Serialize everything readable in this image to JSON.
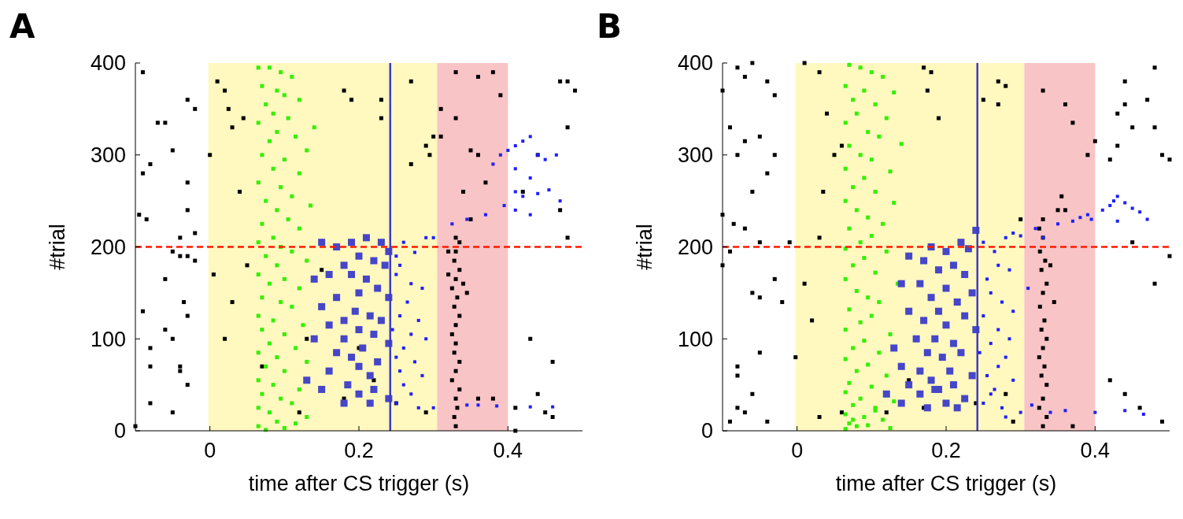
{
  "chart_data": [
    {
      "type": "scatter",
      "title": "A",
      "xlabel": "time after CS trigger (s)",
      "ylabel": "#trial",
      "xlim": [
        -0.1,
        0.5
      ],
      "ylim": [
        0,
        400
      ],
      "xticks": [
        0,
        0.2,
        0.4
      ],
      "yticks": [
        0,
        100,
        200,
        300,
        400
      ],
      "marker": "square",
      "bands": [
        {
          "axis": "x",
          "from": -0.002,
          "to": 0.305,
          "color": "#fff8bf"
        },
        {
          "axis": "x",
          "from": 0.305,
          "to": 0.4,
          "color": "#f8c4c6"
        }
      ],
      "ref_lines": [
        {
          "axis": "y",
          "value": 200,
          "color": "#ff1a00",
          "line_style": "dashed"
        },
        {
          "axis": "x",
          "value": 0.242,
          "color": "#3c3cc8",
          "line_style": "solid"
        }
      ],
      "series": [
        {
          "color": "#000000",
          "x": [
            -0.09,
            -0.095,
            -0.085,
            -0.08,
            -0.09,
            -0.07,
            -0.06,
            -0.05,
            -0.03,
            -0.02,
            -0.03,
            -0.03,
            -0.04,
            -0.02,
            -0.05,
            -0.04,
            -0.03,
            -0.02,
            -0.06,
            -0.035,
            -0.03,
            -0.09,
            -0.06,
            -0.05,
            -0.08,
            -0.04,
            -0.04,
            -0.1,
            -0.08,
            -0.05,
            -0.03,
            -0.08,
            0,
            0.005,
            0.01,
            0.02,
            0.025,
            0.03,
            0.04,
            0.045,
            0.05,
            0.03,
            0.02,
            0.07,
            0.13,
            0.15,
            0.18,
            0.19,
            0.23,
            0.23,
            0.27,
            0.27,
            0.29,
            0.295,
            0.3,
            0.31,
            0.33,
            0.36,
            0.38,
            0.39,
            0.37,
            0.35,
            0.36,
            0.33,
            0.31,
            0.32,
            0.34,
            0.33,
            0.35,
            0.36,
            0.38,
            0.44,
            0.47,
            0.48,
            0.49,
            0.48,
            0.44,
            0.41,
            0.45,
            0.46,
            0.46,
            0.43,
            0.48,
            0.47,
            0.41,
            0.42,
            0.29,
            0.25,
            0.22,
            0.2,
            0.18,
            0.12,
            0.33,
            0.328,
            0.332,
            0.33,
            0.335,
            0.325,
            0.33,
            0.335,
            0.328,
            0.33,
            0.325,
            0.33,
            0.335,
            0.328,
            0.332,
            0.325,
            0.33,
            0.335,
            0.328,
            0.33,
            0.34,
            0.345,
            0.32,
            0.335
          ],
          "values": [
            390,
            235,
            230,
            290,
            280,
            335,
            335,
            305,
            360,
            350,
            270,
            240,
            210,
            215,
            195,
            190,
            190,
            185,
            165,
            140,
            125,
            130,
            110,
            100,
            90,
            70,
            65,
            5,
            30,
            20,
            50,
            70,
            300,
            170,
            380,
            370,
            350,
            330,
            260,
            340,
            180,
            140,
            100,
            70,
            100,
            175,
            370,
            360,
            360,
            340,
            380,
            290,
            310,
            300,
            320,
            320,
            390,
            385,
            390,
            365,
            270,
            305,
            300,
            340,
            350,
            195,
            260,
            210,
            230,
            35,
            35,
            300,
            380,
            380,
            370,
            330,
            40,
            25,
            20,
            15,
            75,
            100,
            210,
            240,
            0,
            260,
            20,
            30,
            55,
            90,
            35,
            20,
            5,
            15,
            25,
            35,
            45,
            55,
            65,
            75,
            85,
            95,
            105,
            115,
            125,
            135,
            145,
            155,
            165,
            175,
            185,
            195,
            160,
            150,
            170,
            205
          ]
        },
        {
          "color": "#33f000",
          "x": [
            0.065,
            0.08,
            0.095,
            0.11,
            0.07,
            0.09,
            0.1,
            0.075,
            0.12,
            0.085,
            0.105,
            0.065,
            0.14,
            0.09,
            0.08,
            0.115,
            0.13,
            0.07,
            0.1,
            0.085,
            0.12,
            0.065,
            0.095,
            0.11,
            0.075,
            0.135,
            0.09,
            0.105,
            0.07,
            0.12,
            0.085,
            0.065,
            0.095,
            0.11,
            0.075,
            0.13,
            0.09,
            0.065,
            0.1,
            0.08,
            0.12,
            0.07,
            0.095,
            0.11,
            0.065,
            0.085,
            0.125,
            0.07,
            0.1,
            0.08,
            0.115,
            0.065,
            0.09,
            0.13,
            0.075,
            0.1,
            0.065,
            0.085,
            0.12,
            0.07,
            0.095,
            0.11,
            0.065,
            0.08,
            0.13,
            0.09,
            0.065,
            0.1,
            0.075,
            0.115
          ],
          "values": [
            395,
            395,
            390,
            385,
            375,
            370,
            365,
            355,
            360,
            345,
            340,
            335,
            330,
            325,
            315,
            320,
            305,
            300,
            295,
            285,
            280,
            270,
            265,
            255,
            250,
            245,
            240,
            230,
            225,
            220,
            210,
            205,
            200,
            195,
            190,
            185,
            180,
            170,
            165,
            160,
            155,
            145,
            140,
            135,
            125,
            120,
            115,
            110,
            105,
            95,
            90,
            85,
            80,
            75,
            70,
            65,
            55,
            50,
            45,
            40,
            35,
            30,
            25,
            20,
            15,
            10,
            5,
            3,
            1,
            8
          ]
        },
        {
          "color": "#4646c8",
          "x": [
            0.15,
            0.17,
            0.19,
            0.21,
            0.23,
            0.24,
            0.2,
            0.22,
            0.18,
            0.235,
            0.16,
            0.19,
            0.21,
            0.14,
            0.2,
            0.225,
            0.17,
            0.24,
            0.15,
            0.195,
            0.215,
            0.18,
            0.23,
            0.16,
            0.2,
            0.22,
            0.14,
            0.18,
            0.24,
            0.205,
            0.17,
            0.19,
            0.225,
            0.2,
            0.16,
            0.215,
            0.185,
            0.22,
            0.15,
            0.2,
            0.24,
            0.18,
            0.215,
            0.13
          ],
          "values": [
            205,
            200,
            205,
            210,
            205,
            195,
            190,
            185,
            180,
            180,
            170,
            170,
            165,
            165,
            150,
            155,
            145,
            145,
            135,
            130,
            125,
            120,
            120,
            115,
            110,
            105,
            100,
            100,
            95,
            90,
            85,
            80,
            75,
            70,
            65,
            60,
            50,
            45,
            45,
            40,
            35,
            30,
            30,
            55
          ]
        },
        {
          "color": "#1e1eff",
          "x": [
            0.26,
            0.275,
            0.29,
            0.3,
            0.25,
            0.255,
            0.25,
            0.27,
            0.285,
            0.265,
            0.255,
            0.28,
            0.245,
            0.27,
            0.29,
            0.26,
            0.25,
            0.275,
            0.255,
            0.285,
            0.26,
            0.27,
            0.25,
            0.28,
            0.3,
            0.345,
            0.36,
            0.385,
            0.43,
            0.46,
            0.325,
            0.345,
            0.37,
            0.395,
            0.41,
            0.42,
            0.44,
            0.455,
            0.47,
            0.43,
            0.41,
            0.38,
            0.4,
            0.41,
            0.42,
            0.43,
            0.44,
            0.45,
            0.465,
            0.41,
            0.43,
            0.39
          ],
          "values": [
            205,
            194,
            210,
            210,
            190,
            180,
            170,
            160,
            155,
            140,
            125,
            120,
            110,
            105,
            100,
            90,
            80,
            75,
            65,
            60,
            50,
            40,
            30,
            25,
            25,
            28,
            28,
            27,
            26,
            26,
            225,
            230,
            235,
            245,
            240,
            255,
            258,
            262,
            250,
            235,
            260,
            290,
            305,
            310,
            315,
            320,
            300,
            295,
            300,
            285,
            275,
            300
          ]
        }
      ]
    },
    {
      "type": "scatter",
      "title": "B",
      "xlabel": "time after CS trigger (s)",
      "ylabel": "#trial",
      "xlim": [
        -0.1,
        0.5
      ],
      "ylim": [
        0,
        400
      ],
      "xticks": [
        0,
        0.2,
        0.4
      ],
      "yticks": [
        0,
        100,
        200,
        300,
        400
      ],
      "marker": "square",
      "bands": [
        {
          "axis": "x",
          "from": -0.002,
          "to": 0.305,
          "color": "#fff8bf"
        },
        {
          "axis": "x",
          "from": 0.305,
          "to": 0.4,
          "color": "#f8c4c6"
        }
      ],
      "ref_lines": [
        {
          "axis": "y",
          "value": 200,
          "color": "#ff1a00",
          "line_style": "dashed"
        },
        {
          "axis": "x",
          "value": 0.242,
          "color": "#3c3cc8",
          "line_style": "solid"
        }
      ],
      "series": [
        {
          "color": "#000000",
          "x": [
            -0.1,
            -0.08,
            -0.06,
            -0.07,
            -0.04,
            -0.09,
            -0.07,
            -0.05,
            -0.03,
            -0.03,
            -0.04,
            -0.08,
            -0.06,
            -0.1,
            -0.085,
            -0.07,
            -0.05,
            -0.1,
            -0.01,
            -0.09,
            -0.03,
            -0.06,
            -0.05,
            -0.02,
            -0.08,
            -0.06,
            -0.09,
            -0.07,
            -0.08,
            -0.04,
            -0.05,
            -0.08,
            0.01,
            0.03,
            0.035,
            0.04,
            0.06,
            0.03,
            0.05,
            0.01,
            0.02,
            -0.002,
            0.03,
            0.06,
            0.17,
            0.18,
            0.175,
            0.19,
            0.27,
            0.28,
            0.27,
            0.25,
            0.3,
            0.33,
            0.36,
            0.37,
            0.33,
            0.355,
            0.35,
            0.36,
            0.39,
            0.4,
            0.42,
            0.43,
            0.45,
            0.47,
            0.48,
            0.49,
            0.5,
            0.44,
            0.48,
            0.43,
            0.44,
            0.45,
            0.42,
            0.44,
            0.46,
            0.49,
            0.48,
            0.5,
            0.37,
            0.29,
            0.28,
            0.24,
            0.17,
            0.15,
            0.12,
            0.33,
            0.335,
            0.325,
            0.33,
            0.335,
            0.328,
            0.332,
            0.325,
            0.33,
            0.335,
            0.328,
            0.332,
            0.326,
            0.33,
            0.335,
            0.328,
            0.333,
            0.326,
            0.33,
            0.325,
            0.34,
            0.345
          ],
          "values": [
            370,
            395,
            400,
            385,
            380,
            330,
            315,
            320,
            365,
            300,
            280,
            300,
            260,
            235,
            225,
            220,
            205,
            180,
            205,
            195,
            165,
            150,
            145,
            140,
            60,
            40,
            10,
            20,
            25,
            10,
            85,
            70,
            400,
            390,
            260,
            345,
            310,
            210,
            300,
            160,
            120,
            80,
            15,
            20,
            395,
            390,
            370,
            340,
            380,
            375,
            355,
            360,
            230,
            370,
            355,
            335,
            230,
            255,
            240,
            240,
            300,
            315,
            295,
            310,
            330,
            360,
            330,
            300,
            295,
            380,
            395,
            345,
            355,
            205,
            55,
            40,
            25,
            10,
            160,
            190,
            5,
            10,
            40,
            30,
            25,
            55,
            20,
            5,
            15,
            25,
            35,
            50,
            60,
            70,
            80,
            90,
            100,
            110,
            120,
            135,
            150,
            160,
            175,
            185,
            195,
            210,
            220,
            180,
            140
          ]
        },
        {
          "color": "#33f000",
          "x": [
            0.07,
            0.085,
            0.1,
            0.115,
            0.065,
            0.09,
            0.13,
            0.075,
            0.105,
            0.08,
            0.12,
            0.065,
            0.095,
            0.11,
            0.07,
            0.14,
            0.085,
            0.1,
            0.065,
            0.125,
            0.09,
            0.075,
            0.105,
            0.065,
            0.13,
            0.08,
            0.095,
            0.115,
            0.07,
            0.1,
            0.085,
            0.065,
            0.12,
            0.09,
            0.075,
            0.105,
            0.065,
            0.135,
            0.08,
            0.095,
            0.11,
            0.07,
            0.1,
            0.085,
            0.065,
            0.125,
            0.09,
            0.075,
            0.11,
            0.065,
            0.095,
            0.08,
            0.12,
            0.07,
            0.1,
            0.065,
            0.085,
            0.13,
            0.075,
            0.105,
            0.065,
            0.09,
            0.115,
            0.07,
            0.08,
            0.125,
            0.095,
            0.065,
            0.105,
            0.075
          ],
          "values": [
            398,
            395,
            390,
            385,
            375,
            370,
            368,
            360,
            355,
            345,
            340,
            335,
            325,
            320,
            310,
            312,
            300,
            295,
            285,
            282,
            275,
            265,
            260,
            250,
            248,
            240,
            232,
            225,
            220,
            212,
            205,
            198,
            195,
            188,
            180,
            172,
            165,
            160,
            152,
            145,
            140,
            132,
            125,
            118,
            110,
            105,
            98,
            90,
            85,
            78,
            72,
            65,
            60,
            52,
            48,
            42,
            35,
            32,
            28,
            22,
            18,
            15,
            12,
            8,
            5,
            3,
            6,
            2,
            25,
            12
          ]
        },
        {
          "color": "#4646c8",
          "x": [
            0.24,
            0.22,
            0.23,
            0.18,
            0.2,
            0.15,
            0.17,
            0.21,
            0.19,
            0.225,
            0.14,
            0.165,
            0.2,
            0.235,
            0.18,
            0.215,
            0.15,
            0.19,
            0.225,
            0.17,
            0.2,
            0.24,
            0.16,
            0.185,
            0.21,
            0.13,
            0.175,
            0.22,
            0.195,
            0.14,
            0.165,
            0.205,
            0.235,
            0.18,
            0.15,
            0.21,
            0.19,
            0.12,
            0.165,
            0.225,
            0.2,
            0.14,
            0.175,
            0.215,
            0.185
          ],
          "values": [
            218,
            205,
            198,
            200,
            195,
            190,
            185,
            180,
            175,
            170,
            160,
            160,
            155,
            150,
            145,
            140,
            130,
            130,
            125,
            120,
            115,
            110,
            100,
            100,
            95,
            90,
            85,
            85,
            80,
            70,
            65,
            65,
            60,
            55,
            50,
            50,
            45,
            40,
            40,
            35,
            30,
            30,
            25,
            25,
            45
          ]
        },
        {
          "color": "#1e1eff",
          "x": [
            0.25,
            0.265,
            0.28,
            0.29,
            0.3,
            0.27,
            0.285,
            0.255,
            0.26,
            0.275,
            0.29,
            0.25,
            0.27,
            0.285,
            0.26,
            0.245,
            0.28,
            0.27,
            0.255,
            0.29,
            0.265,
            0.25,
            0.275,
            0.3,
            0.315,
            0.34,
            0.36,
            0.28,
            0.26,
            0.31,
            0.32,
            0.33,
            0.37,
            0.39,
            0.41,
            0.42,
            0.425,
            0.43,
            0.44,
            0.45,
            0.46,
            0.47,
            0.35,
            0.38,
            0.395,
            0.43,
            0.4,
            0.44,
            0.465
          ],
          "values": [
            205,
            195,
            210,
            215,
            212,
            180,
            175,
            165,
            150,
            140,
            130,
            125,
            110,
            100,
            95,
            85,
            80,
            70,
            60,
            55,
            45,
            30,
            25,
            20,
            28,
            20,
            22,
            15,
            40,
            155,
            220,
            210,
            228,
            235,
            240,
            245,
            250,
            255,
            248,
            242,
            238,
            230,
            225,
            232,
            230,
            228,
            20,
            22,
            18
          ]
        }
      ]
    }
  ]
}
